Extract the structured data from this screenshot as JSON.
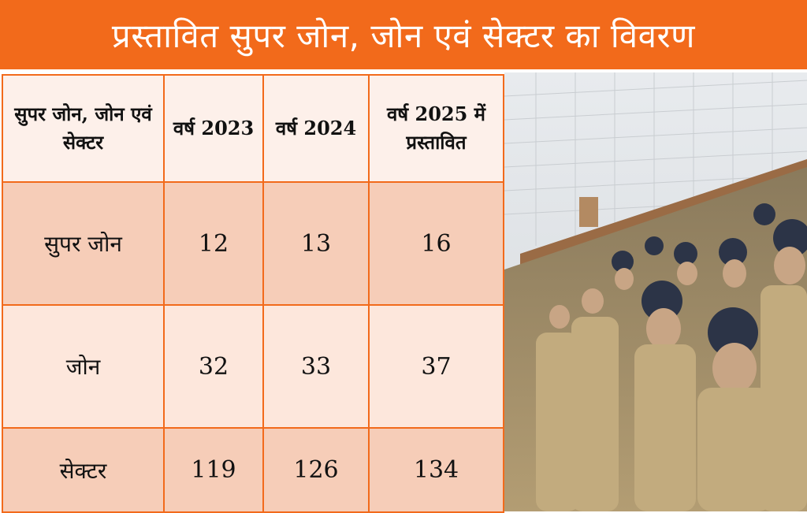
{
  "header": {
    "title": "प्रस्तावित सुपर जोन, जोन एवं सेक्टर का विवरण"
  },
  "table": {
    "columns": [
      "सुपर जोन, जोन एवं सेक्टर",
      "वर्ष 2023",
      "वर्ष 2024",
      "वर्ष 2025 में प्रस्तावित"
    ],
    "rows": [
      {
        "label": "सुपर जोन",
        "y2023": "12",
        "y2024": "13",
        "y2025": "16"
      },
      {
        "label": "जोन",
        "y2023": "32",
        "y2024": "33",
        "y2025": "37"
      },
      {
        "label": "सेक्टर",
        "y2023": "119",
        "y2024": "126",
        "y2025": "134"
      }
    ]
  },
  "colors": {
    "banner": "#f26a1b",
    "row_dark": "#f6cdb8",
    "row_light": "#fde7dc"
  },
  "photo": {
    "subject": "uniformed-personnel-seated-in-auditorium"
  }
}
